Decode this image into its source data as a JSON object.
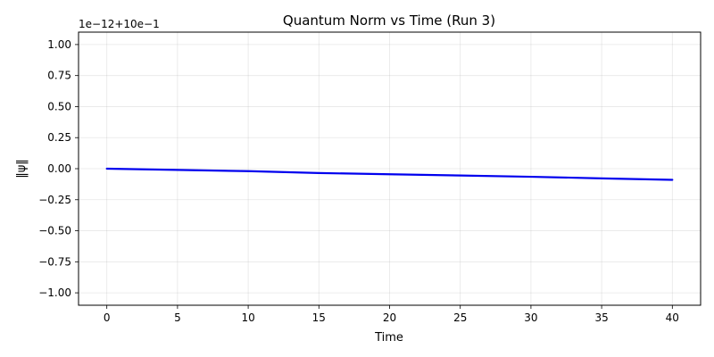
{
  "chart_data": {
    "type": "line",
    "title": "Quantum Norm vs Time (Run 3)",
    "xlabel": "Time",
    "ylabel": "‖ψ‖",
    "offset_label": "1e−12+10e−1",
    "xlim": [
      -2,
      42
    ],
    "ylim": [
      -1.1,
      1.1
    ],
    "xticks": [
      0,
      5,
      10,
      15,
      20,
      25,
      30,
      35,
      40
    ],
    "xtick_labels": [
      "0",
      "5",
      "10",
      "15",
      "20",
      "25",
      "30",
      "35",
      "40"
    ],
    "yticks": [
      1.0,
      0.75,
      0.5,
      0.25,
      0.0,
      -0.25,
      -0.5,
      -0.75,
      -1.0
    ],
    "ytick_labels": [
      "1.00",
      "0.75",
      "0.50",
      "0.25",
      "0.00",
      "−0.25",
      "−0.50",
      "−0.75",
      "−1.00"
    ],
    "grid": true,
    "series": [
      {
        "color": "#0000ee",
        "x": [
          0,
          5,
          10,
          15,
          20,
          25,
          30,
          35,
          40
        ],
        "y": [
          0.0,
          -0.01,
          -0.02,
          -0.035,
          -0.045,
          -0.055,
          -0.065,
          -0.078,
          -0.09
        ]
      }
    ]
  }
}
